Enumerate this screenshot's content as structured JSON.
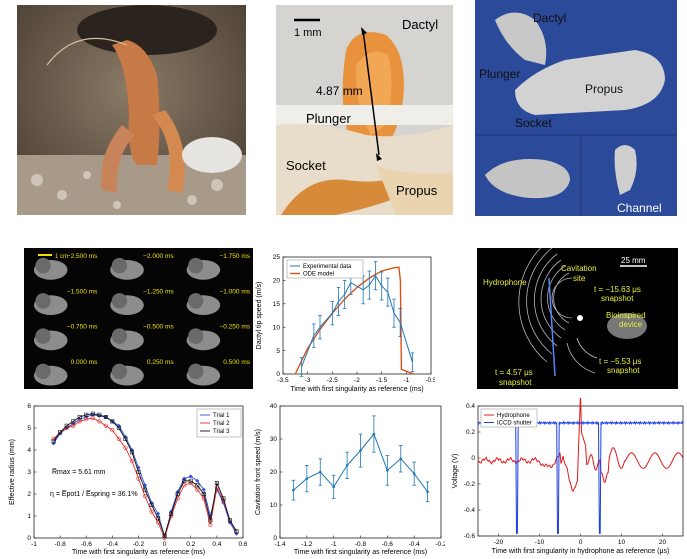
{
  "figure": {
    "photo_shrimp": {
      "label": ""
    },
    "photo_claw": {
      "labels": {
        "dactyl": "Dactyl",
        "plunger": "Plunger",
        "socket": "Socket",
        "propus": "Propus",
        "length": "4.87 mm",
        "scale": "1 mm"
      }
    },
    "render3d": {
      "labels": {
        "dactyl": "Dactyl",
        "plunger": "Plunger",
        "propus": "Propus",
        "socket": "Socket",
        "channel": "Channel"
      }
    },
    "snapshots": {
      "scale": "1 cm",
      "times": [
        "−2.500 ms",
        "−2.000 ms",
        "−1.750 ms",
        "−1.500 ms",
        "−1.250 ms",
        "−1.000 ms",
        "−0.750 ms",
        "−0.500 ms",
        "−0.250 ms",
        "0.000 ms",
        "0.250 ms",
        "0.500 ms"
      ]
    },
    "cavitation_image": {
      "labels": {
        "scale": "25 mm",
        "hydrophone": "Hydrophone",
        "cavitation": "Cavitation",
        "site": "site",
        "t1": "t = −15.63 μs",
        "snap1": "snapshot",
        "bio1": "Bioinspired",
        "bio2": "device",
        "t2": "t = −5.53 μs",
        "snap2": "snapshot",
        "t3": "t = 4.57 μs",
        "snap3": "snapshot"
      }
    }
  },
  "chart_data": [
    {
      "id": "dactyl_speed",
      "type": "line",
      "xlabel": "Time with first singularity as reference (ms)",
      "ylabel": "Dactyl tip speed (m/s)",
      "xlim": [
        -3.5,
        -0.5
      ],
      "ylim": [
        0,
        25
      ],
      "xticks": [
        -3.5,
        -3,
        -2.5,
        -2,
        -1.5,
        -1,
        -0.5
      ],
      "yticks": [
        0,
        5,
        10,
        15,
        20,
        25
      ],
      "legend": [
        "Experimental data",
        "ODE model"
      ],
      "colors": {
        "experimental": "#1f77b4",
        "model": "#d95319"
      },
      "series": [
        {
          "name": "Experimental data",
          "x": [
            -3.125,
            -2.875,
            -2.75,
            -2.5,
            -2.375,
            -2.25,
            -2.125,
            -1.875,
            -1.75,
            -1.625,
            -1.5,
            -1.375,
            -1.25,
            -1.125,
            -0.875
          ],
          "y": [
            1.5,
            8.2,
            10,
            13,
            15.5,
            17,
            19.5,
            18,
            19,
            21,
            18.8,
            17.5,
            13,
            11,
            2.5
          ],
          "err": [
            2,
            2.5,
            2.5,
            2.5,
            3,
            3,
            2.5,
            3,
            3,
            3,
            3,
            3,
            3,
            3,
            2
          ]
        },
        {
          "name": "ODE model",
          "x": [
            -3.25,
            -3.0,
            -2.75,
            -2.5,
            -2.25,
            -2.0,
            -1.75,
            -1.5,
            -1.25,
            -1.15,
            -1.12,
            -1.1,
            -0.9,
            -0.85
          ],
          "y": [
            0,
            5.5,
            9.5,
            13,
            16,
            18.5,
            20.5,
            22,
            22.7,
            22.8,
            20,
            1,
            0.2,
            0
          ]
        }
      ]
    },
    {
      "id": "effective_radius",
      "type": "line",
      "xlabel": "Time with first singularity as reference (ms)",
      "ylabel": "Effective radius (mm)",
      "xlim": [
        -1,
        0.6
      ],
      "ylim": [
        0,
        6
      ],
      "xticks": [
        -1,
        -0.8,
        -0.6,
        -0.4,
        -0.2,
        0,
        0.2,
        0.4,
        0.6
      ],
      "yticks": [
        0,
        1,
        2,
        3,
        4,
        5,
        6
      ],
      "legend": [
        "Trial 1",
        "Trial 2",
        "Trial 3"
      ],
      "annotations": [
        "R̅max = 5.61 mm",
        "η = E̅pot1 / E̅spring = 36.1%"
      ],
      "colors": {
        "trial1": "#2b50e0",
        "trial2": "#e02b2b",
        "trial3": "#111111"
      },
      "series": [
        {
          "name": "Trial 1",
          "x": [
            -0.85,
            -0.8,
            -0.75,
            -0.7,
            -0.65,
            -0.6,
            -0.55,
            -0.5,
            -0.45,
            -0.4,
            -0.35,
            -0.3,
            -0.25,
            -0.2,
            -0.15,
            -0.1,
            -0.05,
            0.0,
            0.05,
            0.1,
            0.15,
            0.2,
            0.25,
            0.3,
            0.35,
            0.4,
            0.45,
            0.5,
            0.55
          ],
          "y": [
            4.3,
            4.75,
            5.0,
            5.2,
            5.4,
            5.5,
            5.6,
            5.55,
            5.5,
            5.3,
            5.1,
            4.6,
            4.0,
            3.2,
            2.4,
            1.6,
            1.1,
            0.05,
            1.2,
            2.1,
            2.7,
            2.8,
            2.6,
            2.2,
            1.0,
            2.2,
            1.6,
            0.7,
            0.2
          ]
        },
        {
          "name": "Trial 2",
          "x": [
            -0.85,
            -0.8,
            -0.75,
            -0.7,
            -0.65,
            -0.6,
            -0.55,
            -0.5,
            -0.45,
            -0.4,
            -0.35,
            -0.3,
            -0.25,
            -0.2,
            -0.15,
            -0.1,
            -0.05,
            0.0,
            0.05,
            0.1,
            0.15,
            0.2,
            0.25,
            0.3,
            0.35,
            0.4,
            0.45,
            0.5,
            0.55
          ],
          "y": [
            4.5,
            4.8,
            5.0,
            5.1,
            5.3,
            5.4,
            5.45,
            5.3,
            5.1,
            4.9,
            4.5,
            4.1,
            3.5,
            2.7,
            1.9,
            1.2,
            0.7,
            0.0,
            1.0,
            1.8,
            2.4,
            2.5,
            2.2,
            1.8,
            0.6,
            2.3,
            1.7,
            0.8,
            0.3
          ]
        },
        {
          "name": "Trial 3",
          "x": [
            -0.85,
            -0.8,
            -0.75,
            -0.7,
            -0.65,
            -0.6,
            -0.55,
            -0.5,
            -0.45,
            -0.4,
            -0.35,
            -0.3,
            -0.25,
            -0.2,
            -0.15,
            -0.1,
            -0.05,
            0.0,
            0.05,
            0.1,
            0.15,
            0.2,
            0.25,
            0.3,
            0.35,
            0.4,
            0.45,
            0.5,
            0.55
          ],
          "y": [
            4.4,
            4.8,
            5.1,
            5.3,
            5.5,
            5.6,
            5.65,
            5.6,
            5.5,
            5.3,
            5.0,
            4.5,
            3.9,
            3.0,
            2.2,
            1.5,
            0.9,
            0.1,
            1.1,
            2.0,
            2.6,
            2.6,
            2.4,
            2.0,
            0.8,
            2.5,
            1.8,
            0.8,
            0.3
          ]
        }
      ]
    },
    {
      "id": "cavitation_front_speed",
      "type": "line",
      "xlabel": "Time with first singularity as reference (ms)",
      "ylabel": "Cavitation front speed (m/s)",
      "xlim": [
        -1.4,
        -0.2
      ],
      "ylim": [
        0,
        40
      ],
      "xticks": [
        -1.4,
        -1.2,
        -1,
        -0.8,
        -0.6,
        -0.4,
        -0.2
      ],
      "yticks": [
        0,
        10,
        20,
        30,
        40
      ],
      "colors": {
        "series": "#1f77b4"
      },
      "series": [
        {
          "x": [
            -1.3,
            -1.2,
            -1.1,
            -1.0,
            -0.9,
            -0.8,
            -0.7,
            -0.6,
            -0.5,
            -0.4,
            -0.3
          ],
          "y": [
            14.5,
            18,
            20,
            15.5,
            22,
            26.5,
            31.5,
            20.5,
            24,
            19.5,
            14
          ],
          "err": [
            3,
            4,
            4,
            3.5,
            4,
            5,
            5.5,
            4.5,
            4,
            3.5,
            3
          ]
        }
      ]
    },
    {
      "id": "hydrophone_voltage",
      "type": "line",
      "xlabel": "Time with first singularity in hydrophone as reference (μs)",
      "ylabel": "Voltage (V)",
      "xlim": [
        -25,
        25
      ],
      "ylim": [
        -0.6,
        0.4
      ],
      "xticks": [
        -20,
        -10,
        0,
        10,
        20
      ],
      "yticks": [
        -0.6,
        -0.4,
        -0.2,
        0,
        0.2,
        0.4
      ],
      "legend": [
        "Hydrophone",
        "ICCD shutter"
      ],
      "colors": {
        "hydrophone": "#e01818",
        "shutter": "#1e3ee0"
      }
    }
  ]
}
